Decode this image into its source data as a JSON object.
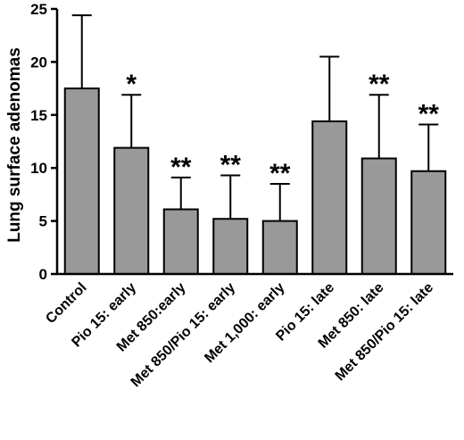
{
  "chart_data": {
    "type": "bar",
    "title": "",
    "xlabel": "",
    "ylabel": "Lung surface adenomas",
    "ylim": [
      0,
      25
    ],
    "yticks": [
      0,
      5,
      10,
      15,
      20,
      25
    ],
    "grid": false,
    "legend": "none",
    "bar_color": "#999999",
    "categories": [
      "Control",
      "Pio 15: early",
      "Met 850:early",
      "Met 850/Pio 15: early",
      "Met 1,000: early",
      "Pio 15: late",
      "Met 850: late",
      "Met 850/Pio 15: late"
    ],
    "values": [
      17.5,
      11.9,
      6.1,
      5.2,
      5.0,
      14.4,
      10.9,
      9.7
    ],
    "error_upper": [
      24.4,
      16.9,
      9.1,
      9.3,
      8.5,
      20.5,
      16.9,
      14.1
    ],
    "annotations": [
      "",
      "*",
      "**",
      "**",
      "**",
      "",
      "**",
      "**"
    ]
  }
}
